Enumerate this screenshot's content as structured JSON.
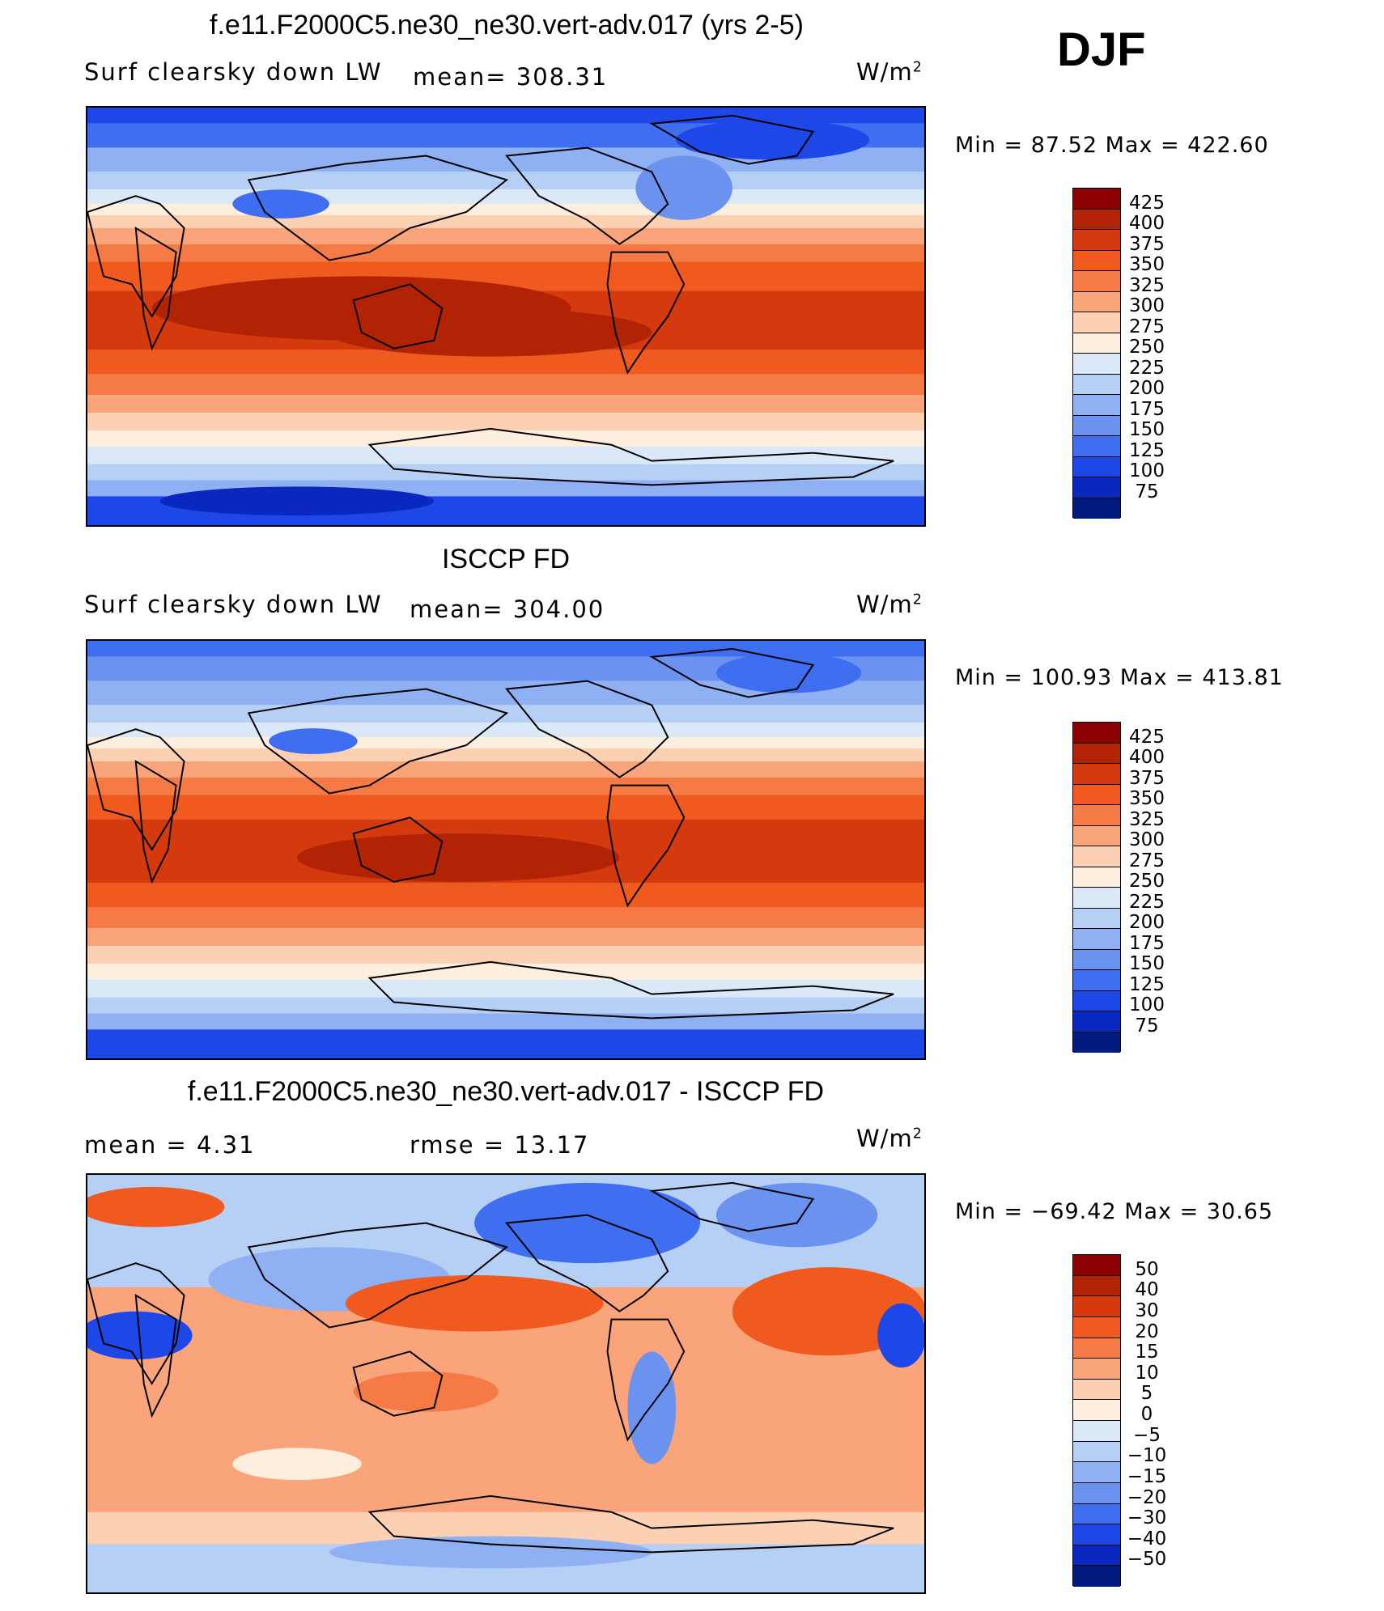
{
  "season": "DJF",
  "units": {
    "base": "W/m",
    "exp": "2"
  },
  "panels": [
    {
      "title": "f.e11.F2000C5.ne30_ne30.vert-adv.017 (yrs 2-5)",
      "variable": "Surf clearsky down LW",
      "stat1": "mean= 308.31",
      "stat2": "",
      "minmax": "Min =   87.52 Max = 422.60"
    },
    {
      "title": "ISCCP FD",
      "variable": "Surf clearsky down LW",
      "stat1": "mean= 304.00",
      "stat2": "",
      "minmax": "Min = 100.93 Max = 413.81"
    },
    {
      "title": "f.e11.F2000C5.ne30_ne30.vert-adv.017 - ISCCP FD",
      "variable": "",
      "stat1": "mean =    4.31",
      "stat2": "rmse =   13.17",
      "minmax": "Min = −69.42 Max =    30.65"
    }
  ],
  "colorbars": [
    {
      "labels": [
        "425",
        "400",
        "375",
        "350",
        "325",
        "300",
        "275",
        "250",
        "225",
        "200",
        "175",
        "150",
        "125",
        "100",
        "75"
      ],
      "colors": [
        "#8b0000",
        "#b22205",
        "#d53a0e",
        "#f05a1e",
        "#f57a45",
        "#f9a47a",
        "#fcd0b3",
        "#fdeedd",
        "#dbe8f8",
        "#b6cff5",
        "#8fb0f2",
        "#6a92ee",
        "#3f6ef0",
        "#1e47e8",
        "#0a28c0",
        "#001a80"
      ]
    },
    {
      "labels": [
        "425",
        "400",
        "375",
        "350",
        "325",
        "300",
        "275",
        "250",
        "225",
        "200",
        "175",
        "150",
        "125",
        "100",
        "75"
      ],
      "colors": [
        "#8b0000",
        "#b22205",
        "#d53a0e",
        "#f05a1e",
        "#f57a45",
        "#f9a47a",
        "#fcd0b3",
        "#fdeedd",
        "#dbe8f8",
        "#b6cff5",
        "#8fb0f2",
        "#6a92ee",
        "#3f6ef0",
        "#1e47e8",
        "#0a28c0",
        "#001a80"
      ]
    },
    {
      "labels": [
        "50",
        "40",
        "30",
        "20",
        "15",
        "10",
        "5",
        "0",
        "−5",
        "−10",
        "−15",
        "−20",
        "−30",
        "−40",
        "−50"
      ],
      "colors": [
        "#8b0000",
        "#b22205",
        "#d53a0e",
        "#f05a1e",
        "#f57a45",
        "#f9a47a",
        "#fcd0b3",
        "#fdeedd",
        "#dbe8f8",
        "#b6cff5",
        "#8fb0f2",
        "#6a92ee",
        "#3f6ef0",
        "#1e47e8",
        "#0a28c0",
        "#001a80"
      ]
    }
  ]
}
